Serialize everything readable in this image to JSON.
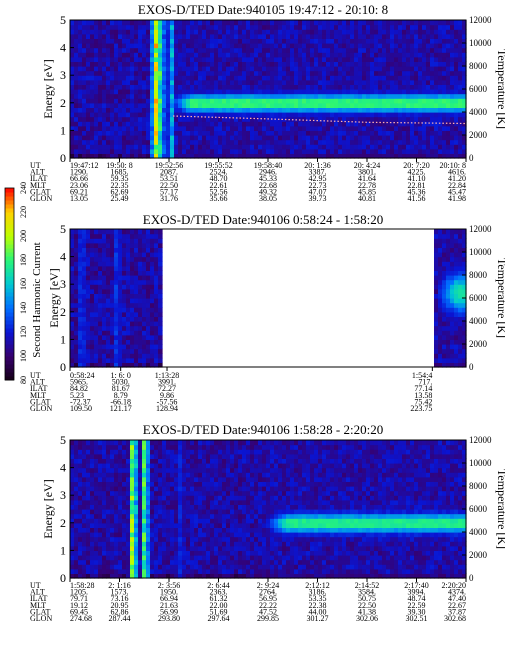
{
  "chart_data": [
    {
      "type": "heatmap",
      "title": "EXOS-D/TED   Date:940105  19:47:12 - 20:10: 8",
      "ylabel": "Energy [eV]",
      "y2label": "Temperature [K]",
      "ylim": [
        0,
        5
      ],
      "y2lim": [
        0,
        12000
      ],
      "yticks": [
        "0",
        "1",
        "2",
        "3",
        "4",
        "5"
      ],
      "y2ticks": [
        "0",
        "2000",
        "4000",
        "6000",
        "8000",
        "10000",
        "12000"
      ],
      "row_labels": [
        "UT",
        "ALT",
        "ILAT",
        "MLT",
        "GLAT",
        "GLON"
      ],
      "columns": [
        [
          "19:47:12",
          "1290.",
          "66.66",
          "23.06",
          "69.21",
          "13.05"
        ],
        [
          "19:50: 8",
          "1685.",
          "59.35",
          "22.35",
          "62.69",
          "25.49"
        ],
        [
          "19:52:56",
          "2087.",
          "53.51",
          "22.50",
          "57.17",
          "31.76"
        ],
        [
          "19:55:52",
          "2524.",
          "48.70",
          "22.61",
          "52.56",
          "35.66"
        ],
        [
          "19:58:40",
          "2946.",
          "45.33",
          "22.68",
          "49.32",
          "38.05"
        ],
        [
          "20: 1:36",
          "3387.",
          "42.95",
          "22.73",
          "47.07",
          "39.73"
        ],
        [
          "20: 4:24",
          "3801.",
          "41.64",
          "22.78",
          "45.85",
          "40.81"
        ],
        [
          "20: 7:20",
          "4225.",
          "41.10",
          "22.81",
          "45.36",
          "41.56"
        ],
        [
          "20:10: 8",
          "4616.",
          "41.20",
          "22.84",
          "45.47",
          "41.98"
        ]
      ],
      "band": {
        "start_fraction": 0.26,
        "center_energy": 2.0,
        "halfwidth": 0.32,
        "peak": 180
      },
      "spikes": [
        {
          "fraction": 0.215,
          "strength": 240
        },
        {
          "fraction": 0.23,
          "strength": 200
        },
        {
          "fraction": 0.255,
          "strength": 170
        }
      ],
      "temperature_trace": [
        [
          0.26,
          3650
        ],
        [
          0.5,
          3400
        ],
        [
          0.75,
          3100
        ],
        [
          1.0,
          3000
        ]
      ]
    },
    {
      "type": "heatmap",
      "title": "EXOS-D/TED   Date:940106  0:58:24 - 1:58:20",
      "ylabel": "Energy [eV]",
      "y2label": "Temperature [K]",
      "ylim": [
        0,
        5
      ],
      "y2lim": [
        0,
        12000
      ],
      "yticks": [
        "0",
        "1",
        "2",
        "3",
        "4",
        "5"
      ],
      "y2ticks": [
        "0",
        "2000",
        "4000",
        "6000",
        "8000",
        "10000",
        "12000"
      ],
      "row_labels": [
        "UT",
        "ALT",
        "ILAT",
        "MLT",
        "GLAT",
        "GLON"
      ],
      "columns": [
        [
          "0:58:24",
          "5965.",
          "84.82",
          "5.23",
          "-72.37",
          "109.50"
        ],
        [
          "1: 6: 0",
          "5030.",
          "81.67",
          "8.79",
          "-66.18",
          "121.17"
        ],
        [
          "1:13:28",
          "3991.",
          "72.27",
          "9.86",
          "-57.56",
          "128.94"
        ],
        [
          "1:54:4",
          "717.",
          "77.14",
          "13.58",
          "75.42",
          "223.75"
        ]
      ],
      "data_spans": [
        [
          0.0,
          0.235
        ],
        [
          0.915,
          1.0
        ]
      ],
      "band": {
        "start_fraction": 0.93,
        "center_energy": 2.7,
        "halfwidth": 0.7,
        "peak": 170
      },
      "spikes": [
        {
          "fraction": 0.03,
          "strength": 140
        },
        {
          "fraction": 0.12,
          "strength": 140
        }
      ],
      "colorbar": {
        "label": "Second Harmonic Current",
        "min": 80,
        "max": 240,
        "ticks": [
          "80",
          "100",
          "120",
          "140",
          "160",
          "180",
          "200",
          "220",
          "240"
        ]
      }
    },
    {
      "type": "heatmap",
      "title": "EXOS-D/TED   Date:940106  1:58:28 - 2:20:20",
      "ylabel": "Energy [eV]",
      "y2label": "Temperature [K]",
      "ylim": [
        0,
        5
      ],
      "y2lim": [
        0,
        12000
      ],
      "yticks": [
        "0",
        "1",
        "2",
        "3",
        "4",
        "5"
      ],
      "y2ticks": [
        "0",
        "2000",
        "4000",
        "6000",
        "8000",
        "10000",
        "12000"
      ],
      "row_labels": [
        "UT",
        "ALT",
        "ILAT",
        "MLT",
        "GLAT",
        "GLON"
      ],
      "columns": [
        [
          "1:58:28",
          "1205.",
          "79.71",
          "19.12",
          "69.45",
          "274.68"
        ],
        [
          "2: 1:16",
          "1573.",
          "73.16",
          "20.95",
          "62.86",
          "287.44"
        ],
        [
          "2: 3:56",
          "1950.",
          "66.94",
          "21.63",
          "56.99",
          "293.80"
        ],
        [
          "2: 6:44",
          "2363.",
          "61.32",
          "22.00",
          "51.69",
          "297.64"
        ],
        [
          "2: 9:24",
          "2764.",
          "56.95",
          "22.22",
          "47.52",
          "299.85"
        ],
        [
          "2:12:12",
          "3186.",
          "53.35",
          "22.38",
          "44.00",
          "301.27"
        ],
        [
          "2:14:52",
          "3584.",
          "50.75",
          "22.50",
          "41.38",
          "302.06"
        ],
        [
          "2:17:40",
          "3994.",
          "48.74",
          "22.59",
          "39.30",
          "302.51"
        ],
        [
          "2:20:20",
          "4374.",
          "47.40",
          "22.67",
          "37.87",
          "302.68"
        ]
      ],
      "band": {
        "start_fraction": 0.5,
        "center_energy": 2.0,
        "halfwidth": 0.35,
        "peak": 175
      },
      "spikes": [
        {
          "fraction": 0.16,
          "strength": 230
        },
        {
          "fraction": 0.19,
          "strength": 210
        },
        {
          "fraction": 0.28,
          "strength": 130
        }
      ]
    }
  ]
}
